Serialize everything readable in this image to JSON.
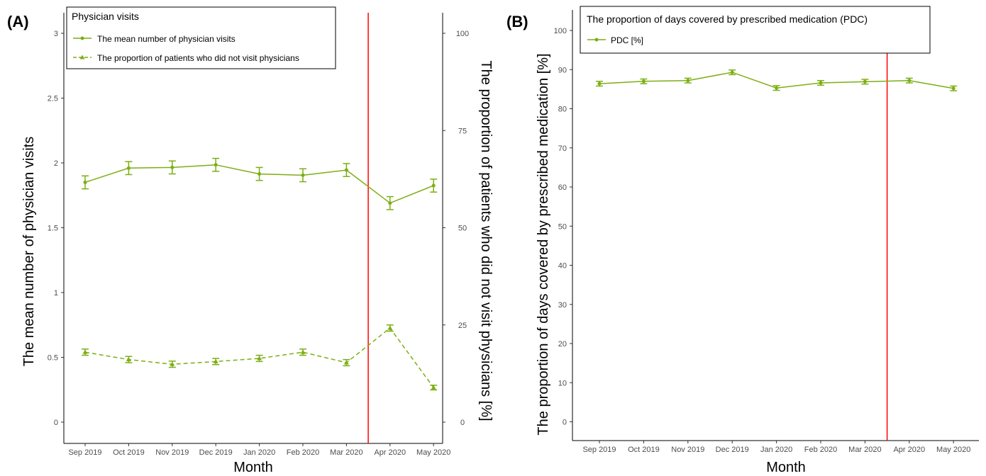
{
  "chart_data": [
    {
      "panel_label": "(A)",
      "type": "line",
      "xlabel": "Month",
      "ylabel": "The mean number of physician visits",
      "y2label": "The proportion of patients who did not visit physicians [%]",
      "categories": [
        "Sep 2019",
        "Oct 2019",
        "Nov 2019",
        "Dec 2019",
        "Jan 2020",
        "Feb 2020",
        "Mar 2020",
        "Apr 2020",
        "May 2020"
      ],
      "ylim": [
        0,
        3
      ],
      "y_ticks": [
        "0",
        "0.5",
        "1",
        "1.5",
        "2",
        "2.5",
        "3"
      ],
      "y2lim": [
        0,
        100
      ],
      "y2_ticks": [
        "0",
        "25",
        "50",
        "75",
        "100"
      ],
      "vline_between": [
        "Mar 2020",
        "Apr 2020"
      ],
      "legend_title": "Physician visits",
      "legend_position": "top-right",
      "series": [
        {
          "name": "The mean number of physician visits",
          "axis": "left",
          "line": "solid",
          "marker": "circle",
          "values": [
            1.85,
            1.96,
            1.965,
            1.985,
            1.915,
            1.905,
            1.945,
            1.69,
            1.825
          ],
          "err": [
            0.05,
            0.05,
            0.05,
            0.05,
            0.05,
            0.05,
            0.05,
            0.05,
            0.05
          ]
        },
        {
          "name": "The proportion of patients who did not visit physicians",
          "axis": "right",
          "line": "dashed",
          "marker": "triangle",
          "values": [
            18.0,
            16.1,
            14.9,
            15.6,
            16.4,
            18.0,
            15.3,
            24.2,
            8.9
          ],
          "err": [
            0.8,
            0.8,
            0.8,
            0.8,
            0.8,
            0.8,
            0.8,
            0.8,
            0.6
          ]
        }
      ],
      "colors": {
        "series": "#7cae14",
        "vline": "#ff0000",
        "axis": "#000000"
      }
    },
    {
      "panel_label": "(B)",
      "type": "line",
      "xlabel": "Month",
      "ylabel": "The proportion of days covered by prescribed medication [%]",
      "categories": [
        "Sep 2019",
        "Oct 2019",
        "Nov 2019",
        "Dec 2019",
        "Jan 2020",
        "Feb 2020",
        "Mar 2020",
        "Apr 2020",
        "May 2020"
      ],
      "ylim": [
        0,
        100
      ],
      "y_ticks": [
        "0",
        "10",
        "20",
        "30",
        "40",
        "50",
        "60",
        "70",
        "80",
        "90",
        "100"
      ],
      "vline_between": [
        "Mar 2020",
        "Apr 2020"
      ],
      "legend_title": "The proportion of days covered by prescribed medication (PDC)",
      "legend_position": "top",
      "series": [
        {
          "name": "PDC [%]",
          "axis": "left",
          "line": "solid",
          "marker": "circle",
          "values": [
            86.4,
            87.0,
            87.2,
            89.3,
            85.3,
            86.6,
            86.9,
            87.2,
            85.2
          ],
          "err": [
            0.6,
            0.6,
            0.6,
            0.6,
            0.6,
            0.6,
            0.6,
            0.6,
            0.6
          ]
        }
      ],
      "colors": {
        "series": "#7cae14",
        "vline": "#ff0000",
        "axis": "#000000"
      }
    }
  ]
}
